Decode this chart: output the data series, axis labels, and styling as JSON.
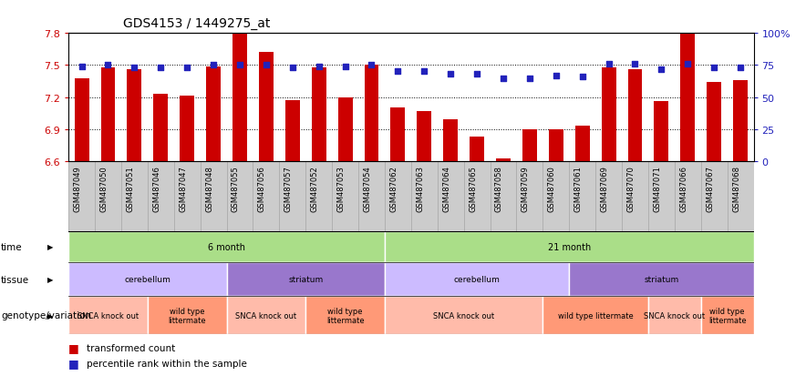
{
  "title": "GDS4153 / 1449275_at",
  "samples": [
    "GSM487049",
    "GSM487050",
    "GSM487051",
    "GSM487046",
    "GSM487047",
    "GSM487048",
    "GSM487055",
    "GSM487056",
    "GSM487057",
    "GSM487052",
    "GSM487053",
    "GSM487054",
    "GSM487062",
    "GSM487063",
    "GSM487064",
    "GSM487065",
    "GSM487058",
    "GSM487059",
    "GSM487060",
    "GSM487061",
    "GSM487069",
    "GSM487070",
    "GSM487071",
    "GSM487066",
    "GSM487067",
    "GSM487068"
  ],
  "bar_values": [
    7.38,
    7.48,
    7.46,
    7.23,
    7.21,
    7.49,
    7.79,
    7.62,
    7.17,
    7.48,
    7.2,
    7.5,
    7.1,
    7.07,
    6.99,
    6.83,
    6.63,
    6.9,
    6.9,
    6.93,
    7.48,
    7.46,
    7.16,
    7.79,
    7.34,
    7.36
  ],
  "percentile_values": [
    74,
    75,
    73,
    73,
    73,
    75,
    75,
    75,
    73,
    74,
    74,
    75,
    70,
    70,
    68,
    68,
    65,
    65,
    67,
    66,
    76,
    76,
    72,
    76,
    73,
    73
  ],
  "ylim_left": [
    6.6,
    7.8
  ],
  "yticks_left": [
    6.6,
    6.9,
    7.2,
    7.5,
    7.8
  ],
  "ylim_right": [
    0,
    100
  ],
  "yticks_right": [
    0,
    25,
    50,
    75,
    100
  ],
  "bar_color": "#CC0000",
  "dot_color": "#2222BB",
  "bg_color": "#ffffff",
  "tick_bg": "#cccccc",
  "legend_labels": [
    "transformed count",
    "percentile rank within the sample"
  ],
  "time_groups": [
    {
      "text": "6 month",
      "start": 0,
      "end": 11,
      "color": "#AADE88"
    },
    {
      "text": "21 month",
      "start": 12,
      "end": 25,
      "color": "#AADE88"
    }
  ],
  "tissue_groups": [
    {
      "text": "cerebellum",
      "start": 0,
      "end": 5,
      "color": "#CCBBFF"
    },
    {
      "text": "striatum",
      "start": 6,
      "end": 11,
      "color": "#9977CC"
    },
    {
      "text": "cerebellum",
      "start": 12,
      "end": 18,
      "color": "#CCBBFF"
    },
    {
      "text": "striatum",
      "start": 19,
      "end": 25,
      "color": "#9977CC"
    }
  ],
  "genotype_groups": [
    {
      "text": "SNCA knock out",
      "start": 0,
      "end": 2,
      "color": "#FFBBAA"
    },
    {
      "text": "wild type\nlittermate",
      "start": 3,
      "end": 5,
      "color": "#FF9977"
    },
    {
      "text": "SNCA knock out",
      "start": 6,
      "end": 8,
      "color": "#FFBBAA"
    },
    {
      "text": "wild type\nlittermate",
      "start": 9,
      "end": 11,
      "color": "#FF9977"
    },
    {
      "text": "SNCA knock out",
      "start": 12,
      "end": 17,
      "color": "#FFBBAA"
    },
    {
      "text": "wild type littermate",
      "start": 18,
      "end": 21,
      "color": "#FF9977"
    },
    {
      "text": "SNCA knock out",
      "start": 22,
      "end": 23,
      "color": "#FFBBAA"
    },
    {
      "text": "wild type\nlittermate",
      "start": 24,
      "end": 25,
      "color": "#FF9977"
    }
  ],
  "row_labels": [
    "time",
    "tissue",
    "genotype/variation"
  ]
}
